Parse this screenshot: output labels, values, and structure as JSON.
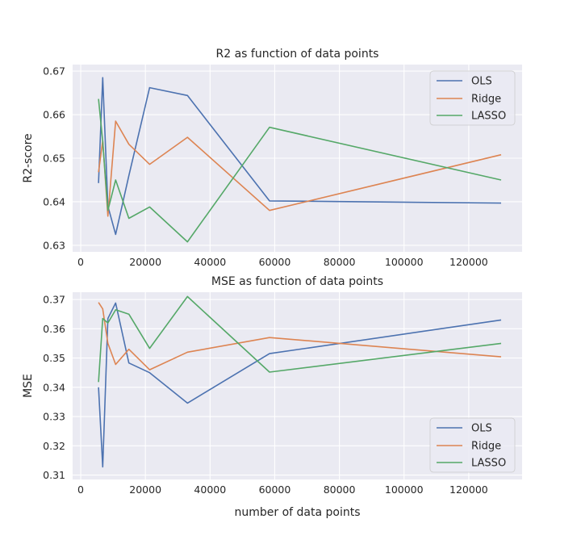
{
  "colors": {
    "plot_bg": "#eaeaf2",
    "grid": "#ffffff",
    "text": "#262626",
    "OLS": "#4c72b0",
    "Ridge": "#dd8452",
    "LASSO": "#55a868"
  },
  "chart_data": [
    {
      "type": "line",
      "title": "R2 as function of data points",
      "xlabel": "",
      "ylabel": "R2-score",
      "xlim": [
        -2500,
        136500
      ],
      "ylim": [
        0.6285,
        0.6715
      ],
      "xticks": [
        0,
        20000,
        40000,
        60000,
        80000,
        100000,
        120000
      ],
      "yticks": [
        0.63,
        0.64,
        0.65,
        0.66,
        0.67
      ],
      "grid": true,
      "legend": "top-right",
      "series": [
        {
          "name": "OLS",
          "x": [
            5500,
            6800,
            8400,
            10800,
            14900,
            21300,
            33000,
            58400,
            130000
          ],
          "y": [
            0.6443,
            0.6685,
            0.639,
            0.6325,
            0.646,
            0.6662,
            0.6644,
            0.6402,
            0.6397
          ]
        },
        {
          "name": "Ridge",
          "x": [
            5500,
            6800,
            8400,
            10800,
            14900,
            21300,
            33000,
            58400,
            130000
          ],
          "y": [
            0.6468,
            0.654,
            0.6367,
            0.6585,
            0.6532,
            0.6486,
            0.6548,
            0.638,
            0.6508
          ]
        },
        {
          "name": "LASSO",
          "x": [
            5500,
            6800,
            8400,
            10800,
            14900,
            21300,
            33000,
            58400,
            130000
          ],
          "y": [
            0.6636,
            0.6538,
            0.638,
            0.645,
            0.6362,
            0.6388,
            0.6308,
            0.6571,
            0.645
          ]
        }
      ]
    },
    {
      "type": "line",
      "title": "MSE as function of data points",
      "xlabel": "number of data points",
      "ylabel": "MSE",
      "xlim": [
        -2500,
        136500
      ],
      "ylim": [
        0.3085,
        0.3725
      ],
      "xticks": [
        0,
        20000,
        40000,
        60000,
        80000,
        100000,
        120000
      ],
      "yticks": [
        0.31,
        0.32,
        0.33,
        0.34,
        0.35,
        0.36,
        0.37
      ],
      "grid": true,
      "legend": "bottom-right",
      "series": [
        {
          "name": "OLS",
          "x": [
            5500,
            6800,
            8400,
            10800,
            14900,
            21300,
            33000,
            58400,
            130000
          ],
          "y": [
            0.34,
            0.3128,
            0.3635,
            0.3688,
            0.3483,
            0.345,
            0.3346,
            0.3515,
            0.363
          ]
        },
        {
          "name": "Ridge",
          "x": [
            5500,
            6800,
            8400,
            10800,
            14900,
            21300,
            33000,
            58400,
            130000
          ],
          "y": [
            0.369,
            0.3668,
            0.355,
            0.3478,
            0.353,
            0.346,
            0.352,
            0.357,
            0.3504
          ]
        },
        {
          "name": "LASSO",
          "x": [
            5500,
            6800,
            8400,
            10800,
            14900,
            21300,
            33000,
            58400,
            130000
          ],
          "y": [
            0.3418,
            0.3635,
            0.362,
            0.3665,
            0.365,
            0.3533,
            0.371,
            0.3452,
            0.355
          ]
        }
      ]
    }
  ]
}
